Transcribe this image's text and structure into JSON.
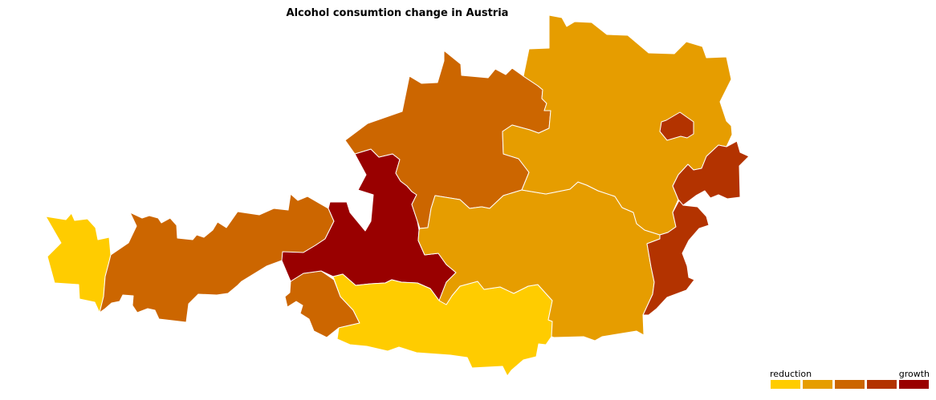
{
  "chart_data": {
    "type": "choropleth",
    "title": "Alcohol consumtion change in Austria",
    "color_scale": [
      "#FFCC00",
      "#E69D00",
      "#CC6600",
      "#B33300",
      "#990000"
    ],
    "legend": {
      "low_label": "reduction",
      "high_label": "growth",
      "position": "bottom-right",
      "classes": 5
    },
    "regions": [
      {
        "id": "vorarlberg",
        "class": 0
      },
      {
        "id": "tirol",
        "class": 2
      },
      {
        "id": "osttirol",
        "class": 2
      },
      {
        "id": "salzburg",
        "class": 4
      },
      {
        "id": "kaernten",
        "class": 0
      },
      {
        "id": "oberoesterreich",
        "class": 2
      },
      {
        "id": "steiermark",
        "class": 1
      },
      {
        "id": "niederoesterreich",
        "class": 1
      },
      {
        "id": "wien",
        "class": 3
      },
      {
        "id": "burgenland",
        "class": 3
      }
    ]
  }
}
